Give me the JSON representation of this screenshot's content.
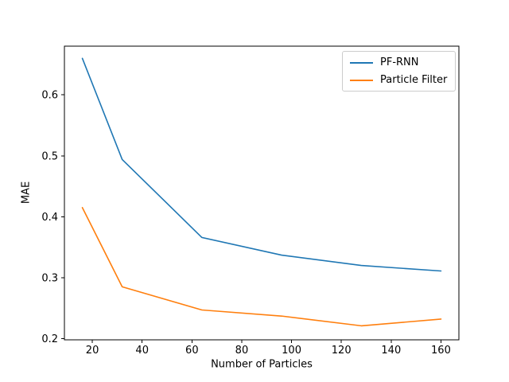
{
  "figure": {
    "background": "#ffffff",
    "spine_color": "#000000",
    "tick_color": "#000000"
  },
  "chart_data": {
    "type": "line",
    "title": "",
    "xlabel": "Number of Particles",
    "ylabel": "MAE",
    "x": [
      16,
      32,
      64,
      96,
      128,
      160
    ],
    "series": [
      {
        "name": "PF-RNN",
        "color": "#1f77b4",
        "values": [
          0.66,
          0.494,
          0.366,
          0.337,
          0.32,
          0.311
        ]
      },
      {
        "name": "Particle Filter",
        "color": "#ff7f0e",
        "values": [
          0.415,
          0.285,
          0.247,
          0.237,
          0.221,
          0.232
        ]
      }
    ],
    "xlim": [
      8.8,
      167.2
    ],
    "ylim": [
      0.198,
      0.68
    ],
    "xticks": [
      20,
      40,
      60,
      80,
      100,
      120,
      140,
      160
    ],
    "yticks": [
      0.2,
      0.3,
      0.4,
      0.5,
      0.6
    ],
    "ytick_labels": [
      "0.2",
      "0.3",
      "0.4",
      "0.5",
      "0.6"
    ],
    "grid": false,
    "legend_position": "upper-right"
  }
}
